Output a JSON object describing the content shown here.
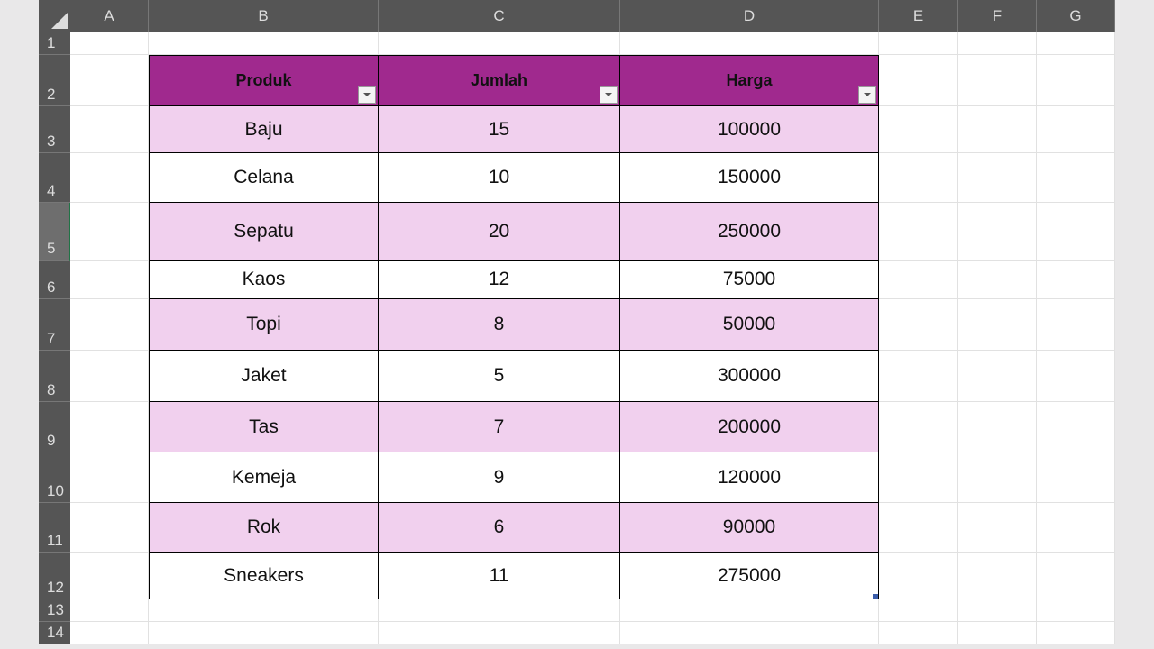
{
  "columns": [
    "A",
    "B",
    "C",
    "D",
    "E",
    "F",
    "G"
  ],
  "rows": [
    "1",
    "2",
    "3",
    "4",
    "5",
    "6",
    "7",
    "8",
    "9",
    "10",
    "11",
    "12",
    "13",
    "14"
  ],
  "selected_row": "5",
  "table": {
    "headers": [
      "Produk",
      "Jumlah",
      "Harga"
    ],
    "rows": [
      [
        "Baju",
        "15",
        "100000"
      ],
      [
        "Celana",
        "10",
        "150000"
      ],
      [
        "Sepatu",
        "20",
        "250000"
      ],
      [
        "Kaos",
        "12",
        "75000"
      ],
      [
        "Topi",
        "8",
        "50000"
      ],
      [
        "Jaket",
        "5",
        "300000"
      ],
      [
        "Tas",
        "7",
        "200000"
      ],
      [
        "Kemeja",
        "9",
        "120000"
      ],
      [
        "Rok",
        "6",
        "90000"
      ],
      [
        "Sneakers",
        "11",
        "275000"
      ]
    ]
  },
  "colors": {
    "header_fill": "#a0298e",
    "band_fill": "#f1d0ee",
    "grid_header": "#555555"
  }
}
